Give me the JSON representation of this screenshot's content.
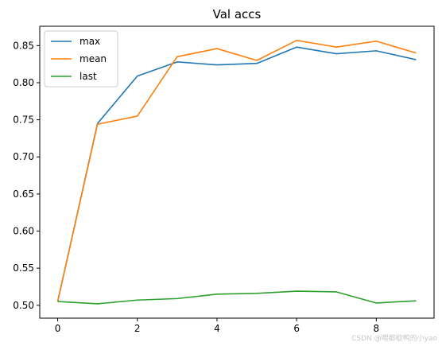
{
  "chart_data": {
    "type": "line",
    "title": "Val accs",
    "xlabel": "",
    "ylabel": "",
    "x": [
      0,
      1,
      2,
      3,
      4,
      5,
      6,
      7,
      8,
      9
    ],
    "xlim": [
      -0.45,
      9.45
    ],
    "ylim": [
      0.4826,
      0.8761
    ],
    "xticks": [
      0,
      2,
      4,
      6,
      8
    ],
    "yticks": [
      0.5,
      0.55,
      0.6,
      0.65,
      0.7,
      0.75,
      0.8,
      0.85
    ],
    "xtick_labels": [
      "0",
      "2",
      "4",
      "6",
      "8"
    ],
    "ytick_labels": [
      "0.50",
      "0.55",
      "0.60",
      "0.65",
      "0.70",
      "0.75",
      "0.80",
      "0.85"
    ],
    "grid": false,
    "legend_position": "top-left",
    "series": [
      {
        "name": "max",
        "color": "#1f77b4",
        "values": [
          0.505,
          0.745,
          0.809,
          0.828,
          0.824,
          0.826,
          0.848,
          0.839,
          0.843,
          0.831
        ]
      },
      {
        "name": "mean",
        "color": "#ff7f0e",
        "values": [
          0.505,
          0.744,
          0.755,
          0.835,
          0.846,
          0.83,
          0.857,
          0.848,
          0.856,
          0.84
        ]
      },
      {
        "name": "last",
        "color": "#2ca02c",
        "values": [
          0.505,
          0.502,
          0.507,
          0.509,
          0.515,
          0.516,
          0.519,
          0.518,
          0.503,
          0.506
        ]
      }
    ]
  },
  "watermark": "CSDN @喂都歇鸭的小yao"
}
